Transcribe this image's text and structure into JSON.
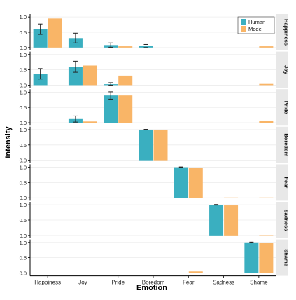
{
  "chart_data": {
    "type": "bar",
    "xlabel": "Emotion",
    "ylabel": "Intensity",
    "categories": [
      "Happiness",
      "Joy",
      "Pride",
      "Boredom",
      "Fear",
      "Sadness",
      "Shame"
    ],
    "ylim": [
      0,
      1
    ],
    "yticks": [
      "0.0",
      "0.5",
      "1.0"
    ],
    "legend": {
      "placement": "top-right",
      "entries": [
        "Human",
        "Model"
      ]
    },
    "colors": {
      "Human": "#3aafc0",
      "Model": "#f9b567",
      "strip": "#e8e8e8"
    },
    "grid": true,
    "facets": [
      {
        "label": "Happiness",
        "series": [
          {
            "name": "Human",
            "values": [
              0.6,
              0.31,
              0.08,
              0.05,
              0.0,
              0.0,
              0.0
            ],
            "err": [
              0.17,
              0.16,
              0.07,
              0.05,
              0.0,
              0.0,
              0.0
            ]
          },
          {
            "name": "Model",
            "values": [
              0.95,
              0.0,
              0.04,
              0.0,
              0.0,
              0.0,
              0.04
            ]
          }
        ]
      },
      {
        "label": "Joy",
        "series": [
          {
            "name": "Human",
            "values": [
              0.37,
              0.6,
              0.03,
              0.0,
              0.0,
              0.0,
              0.0
            ],
            "err": [
              0.17,
              0.18,
              0.05,
              0.0,
              0.0,
              0.0,
              0.0
            ]
          },
          {
            "name": "Model",
            "values": [
              0.0,
              0.64,
              0.31,
              0.0,
              0.0,
              0.0,
              0.04
            ]
          }
        ]
      },
      {
        "label": "Pride",
        "series": [
          {
            "name": "Human",
            "values": [
              0.0,
              0.12,
              0.89,
              0.0,
              0.0,
              0.0,
              0.0
            ],
            "err": [
              0.0,
              0.1,
              0.12,
              0.0,
              0.0,
              0.0,
              0.0
            ]
          },
          {
            "name": "Model",
            "values": [
              0.0,
              0.04,
              0.89,
              0.0,
              0.0,
              0.0,
              0.07
            ]
          }
        ]
      },
      {
        "label": "Boredom",
        "series": [
          {
            "name": "Human",
            "values": [
              0.0,
              0.0,
              0.0,
              1.0,
              0.0,
              0.0,
              0.0
            ],
            "err": [
              0.0,
              0.0,
              0.0,
              0.01,
              0.0,
              0.0,
              0.0
            ]
          },
          {
            "name": "Model",
            "values": [
              0.0,
              0.0,
              0.0,
              1.0,
              0.0,
              0.0,
              0.0
            ]
          }
        ]
      },
      {
        "label": "Fear",
        "series": [
          {
            "name": "Human",
            "values": [
              0.0,
              0.0,
              0.0,
              0.0,
              1.0,
              0.0,
              0.0
            ],
            "err": [
              0.0,
              0.0,
              0.0,
              0.0,
              0.01,
              0.0,
              0.0
            ]
          },
          {
            "name": "Model",
            "values": [
              0.0,
              0.0,
              0.0,
              0.0,
              0.99,
              0.01,
              0.01
            ]
          }
        ]
      },
      {
        "label": "Sadness",
        "series": [
          {
            "name": "Human",
            "values": [
              0.0,
              0.0,
              0.0,
              0.0,
              0.0,
              1.0,
              0.0
            ],
            "err": [
              0.0,
              0.0,
              0.0,
              0.0,
              0.0,
              0.01,
              0.0
            ]
          },
          {
            "name": "Model",
            "values": [
              0.0,
              0.0,
              0.0,
              0.0,
              0.0,
              0.98,
              0.01
            ]
          }
        ]
      },
      {
        "label": "Shame",
        "series": [
          {
            "name": "Human",
            "values": [
              0.0,
              0.0,
              0.0,
              0.0,
              0.0,
              0.0,
              1.0
            ],
            "err": [
              0.0,
              0.0,
              0.0,
              0.0,
              0.0,
              0.0,
              0.01
            ]
          },
          {
            "name": "Model",
            "values": [
              0.0,
              0.0,
              0.0,
              0.0,
              0.05,
              0.0,
              0.98
            ]
          }
        ]
      }
    ]
  }
}
